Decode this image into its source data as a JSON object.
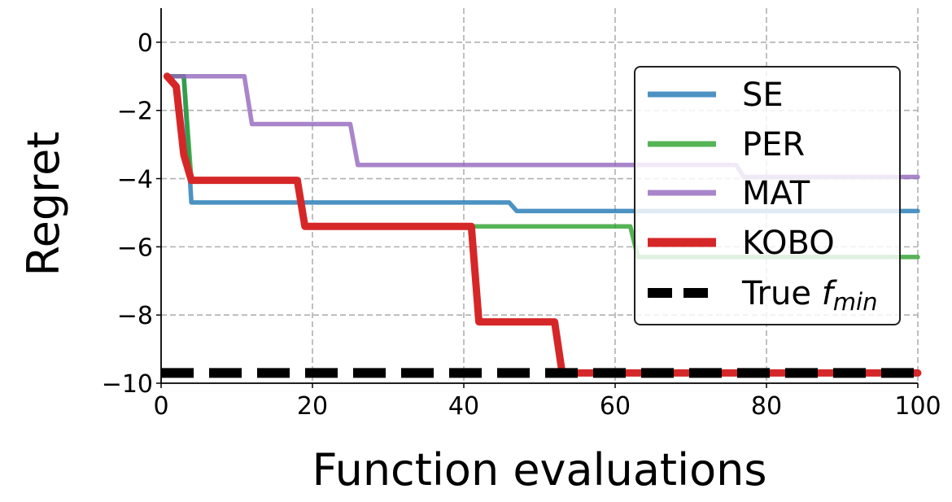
{
  "chart_data": {
    "type": "line",
    "xlabel": "Function evaluations",
    "ylabel": "Regret",
    "xlim": [
      0,
      100
    ],
    "ylim": [
      -10,
      1
    ],
    "xticks": [
      0,
      20,
      40,
      60,
      80,
      100
    ],
    "xtick_labels": [
      "0",
      "20",
      "40",
      "60",
      "80",
      "100"
    ],
    "yticks": [
      0,
      -2,
      -4,
      -6,
      -8,
      -10
    ],
    "ytick_labels": [
      "0",
      "−2",
      "−4",
      "−6",
      "−8",
      "−10"
    ],
    "grid": true,
    "legend_position": "right",
    "series": [
      {
        "name": "SE",
        "color": "#1f77b4",
        "style": "solid",
        "points": [
          [
            1,
            -1
          ],
          [
            3,
            -1
          ],
          [
            4,
            -4.7
          ],
          [
            46,
            -4.7
          ],
          [
            47,
            -4.95
          ],
          [
            100,
            -4.95
          ]
        ]
      },
      {
        "name": "PER",
        "color": "#2ca02c",
        "style": "solid",
        "points": [
          [
            1,
            -1
          ],
          [
            3,
            -1
          ],
          [
            4,
            -4.05
          ],
          [
            18,
            -4.05
          ],
          [
            19,
            -5.4
          ],
          [
            62,
            -5.4
          ],
          [
            63,
            -6.3
          ],
          [
            100,
            -6.3
          ]
        ]
      },
      {
        "name": "MAT",
        "color": "#9467bd",
        "style": "solid",
        "points": [
          [
            1,
            -1
          ],
          [
            11,
            -1
          ],
          [
            12,
            -2.4
          ],
          [
            25,
            -2.4
          ],
          [
            26,
            -3.6
          ],
          [
            76,
            -3.6
          ],
          [
            77,
            -3.95
          ],
          [
            100,
            -3.95
          ]
        ]
      },
      {
        "name": "KOBO",
        "color": "#d62728",
        "style": "solid",
        "points": [
          [
            0.8,
            -1
          ],
          [
            2,
            -1.3
          ],
          [
            3,
            -3.3
          ],
          [
            4,
            -4.05
          ],
          [
            18,
            -4.05
          ],
          [
            19,
            -5.4
          ],
          [
            41,
            -5.4
          ],
          [
            42,
            -8.2
          ],
          [
            52,
            -8.2
          ],
          [
            53,
            -9.7
          ],
          [
            100,
            -9.7
          ]
        ]
      },
      {
        "name": "True f_min",
        "label_main": "True ",
        "label_math": "f",
        "label_sub": "min",
        "color": "#000000",
        "style": "dashed",
        "points": [
          [
            0,
            -9.7
          ],
          [
            100,
            -9.7
          ]
        ]
      }
    ]
  }
}
